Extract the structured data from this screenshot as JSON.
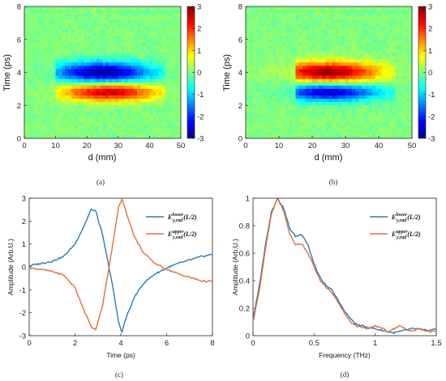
{
  "panels": {
    "a": {
      "caption": "(a)",
      "chart_data": {
        "type": "heatmap",
        "xlabel": "d (mm)",
        "ylabel": "Time (ps)",
        "xlim": [
          0,
          50
        ],
        "ylim": [
          0,
          8
        ],
        "xticks": [
          "0",
          "10",
          "20",
          "30",
          "40",
          "50"
        ],
        "yticks": [
          "0",
          "2",
          "4",
          "6",
          "8"
        ],
        "colorbar": {
          "range": [
            -3,
            3
          ],
          "ticks": [
            "3",
            "2",
            "1",
            "0",
            "-1",
            "-2",
            "-3"
          ]
        },
        "field": [
          {
            "center_d": 25,
            "center_t": 4.0,
            "width_d": 11,
            "width_t": 0.45,
            "amplitude": -2.9
          },
          {
            "center_d": 27,
            "center_t": 2.8,
            "width_d": 11,
            "width_t": 0.38,
            "amplitude": 2.6
          }
        ],
        "data_extent_d": [
          10,
          45
        ]
      }
    },
    "b": {
      "caption": "(b)",
      "chart_data": {
        "type": "heatmap",
        "xlabel": "d (mm)",
        "ylabel": "Time (ps)",
        "xlim": [
          0,
          50
        ],
        "ylim": [
          0,
          8
        ],
        "xticks": [
          "0",
          "10",
          "20",
          "30",
          "40",
          "50"
        ],
        "yticks": [
          "0",
          "2",
          "4",
          "6",
          "8"
        ],
        "colorbar": {
          "range": [
            -3,
            3
          ],
          "ticks": [
            "3",
            "2",
            "1",
            "0",
            "-1",
            "-2",
            "-3"
          ]
        },
        "field": [
          {
            "center_d": 25,
            "center_t": 4.0,
            "width_d": 11,
            "width_t": 0.45,
            "amplitude": 2.9
          },
          {
            "center_d": 25,
            "center_t": 2.8,
            "width_d": 11,
            "width_t": 0.38,
            "amplitude": -2.6
          }
        ],
        "data_extent_d": [
          15,
          45
        ]
      }
    },
    "c": {
      "caption": "(c)",
      "chart_data": {
        "type": "line",
        "xlabel": "Time (ps)",
        "ylabel": "Amplitude (Arb.U.)",
        "xlim": [
          0,
          8
        ],
        "ylim": [
          -3,
          3
        ],
        "xticks": [
          "0",
          "2",
          "4",
          "6",
          "8"
        ],
        "yticks": [
          "3",
          "2",
          "1",
          "0",
          "-1",
          "-2",
          "-3"
        ],
        "legend_position": "top-right",
        "series": [
          {
            "name": "E_{y,rad}^{lower}(L/2)",
            "name_main": "E",
            "name_sub": "y,rad",
            "name_sup": "lower",
            "name_arg": "(L/2)",
            "color": "#2a7ab8",
            "x": [
              0,
              0.5,
              1.0,
              1.5,
              2.0,
              2.4,
              2.7,
              2.9,
              3.2,
              3.6,
              3.9,
              4.05,
              4.2,
              4.6,
              5.0,
              5.5,
              6.0,
              6.5,
              7.0,
              7.5,
              8.0
            ],
            "y": [
              0.05,
              0.15,
              0.25,
              0.45,
              1.0,
              1.8,
              2.5,
              2.45,
              1.4,
              -0.6,
              -2.4,
              -2.85,
              -2.3,
              -1.3,
              -0.7,
              -0.3,
              -0.05,
              0.15,
              0.3,
              0.45,
              0.55
            ]
          },
          {
            "name": "E_{y,rad}^{upper}(L/2)",
            "name_main": "E",
            "name_sub": "y,rad",
            "name_sup": "upper",
            "name_arg": "(L/2)",
            "color": "#e0703a",
            "x": [
              0,
              0.5,
              1.0,
              1.5,
              2.0,
              2.4,
              2.7,
              2.9,
              3.2,
              3.6,
              3.9,
              4.05,
              4.2,
              4.6,
              5.0,
              5.5,
              6.0,
              6.5,
              7.0,
              7.5,
              8.0
            ],
            "y": [
              -0.05,
              -0.1,
              -0.2,
              -0.35,
              -0.9,
              -1.9,
              -2.6,
              -2.75,
              -1.7,
              0.7,
              2.6,
              2.95,
              2.5,
              1.3,
              0.6,
              0.15,
              -0.1,
              -0.3,
              -0.45,
              -0.6,
              -0.65
            ]
          }
        ]
      }
    },
    "d": {
      "caption": "(d)",
      "chart_data": {
        "type": "line",
        "xlabel": "Frequency (THz)",
        "ylabel": "Amplitude (Arb.U.)",
        "xlim": [
          0,
          1.5
        ],
        "ylim": [
          0,
          1
        ],
        "xticks": [
          "0",
          "0.5",
          "1",
          "1.5"
        ],
        "yticks": [
          "1",
          "0.8",
          "0.6",
          "0.4",
          "0.2",
          "0"
        ],
        "legend_position": "top-right",
        "series": [
          {
            "name": "E_{y,rad}^{lower}(L/2)",
            "name_main": "E",
            "name_sub": "y,rad",
            "name_sup": "lower",
            "name_arg": "(L/2)",
            "color": "#2a7ab8",
            "x": [
              0,
              0.05,
              0.1,
              0.15,
              0.2,
              0.25,
              0.3,
              0.35,
              0.4,
              0.45,
              0.5,
              0.55,
              0.6,
              0.65,
              0.7,
              0.75,
              0.8,
              0.85,
              0.9,
              0.95,
              1.0,
              1.05,
              1.1,
              1.15,
              1.2,
              1.25,
              1.3,
              1.35,
              1.4,
              1.45,
              1.5
            ],
            "y": [
              0.12,
              0.35,
              0.65,
              0.9,
              1.0,
              0.93,
              0.78,
              0.72,
              0.74,
              0.66,
              0.52,
              0.42,
              0.36,
              0.33,
              0.25,
              0.18,
              0.12,
              0.08,
              0.07,
              0.06,
              0.05,
              0.04,
              0.03,
              0.02,
              0.03,
              0.04,
              0.05,
              0.05,
              0.04,
              0.04,
              0.05
            ]
          },
          {
            "name": "E_{y,rad}^{upper}(L/2)",
            "name_main": "E",
            "name_sub": "y,rad",
            "name_sup": "upper",
            "name_arg": "(L/2)",
            "color": "#e0703a",
            "x": [
              0,
              0.05,
              0.1,
              0.15,
              0.2,
              0.25,
              0.3,
              0.35,
              0.4,
              0.45,
              0.5,
              0.55,
              0.6,
              0.65,
              0.7,
              0.75,
              0.8,
              0.85,
              0.9,
              0.95,
              1.0,
              1.05,
              1.1,
              1.15,
              1.2,
              1.25,
              1.3,
              1.35,
              1.4,
              1.45,
              1.5
            ],
            "y": [
              0.1,
              0.32,
              0.62,
              0.88,
              1.0,
              0.91,
              0.74,
              0.66,
              0.67,
              0.6,
              0.5,
              0.4,
              0.35,
              0.31,
              0.24,
              0.16,
              0.1,
              0.07,
              0.06,
              0.05,
              0.07,
              0.06,
              0.03,
              0.05,
              0.07,
              0.05,
              0.03,
              0.05,
              0.04,
              0.03,
              0.03
            ]
          }
        ]
      }
    }
  },
  "colors": {
    "jet": [
      "#00008f",
      "#0000ff",
      "#0080ff",
      "#00ffff",
      "#80ff80",
      "#ffff00",
      "#ff8000",
      "#ff0000",
      "#800000"
    ],
    "axis": "#222222"
  }
}
